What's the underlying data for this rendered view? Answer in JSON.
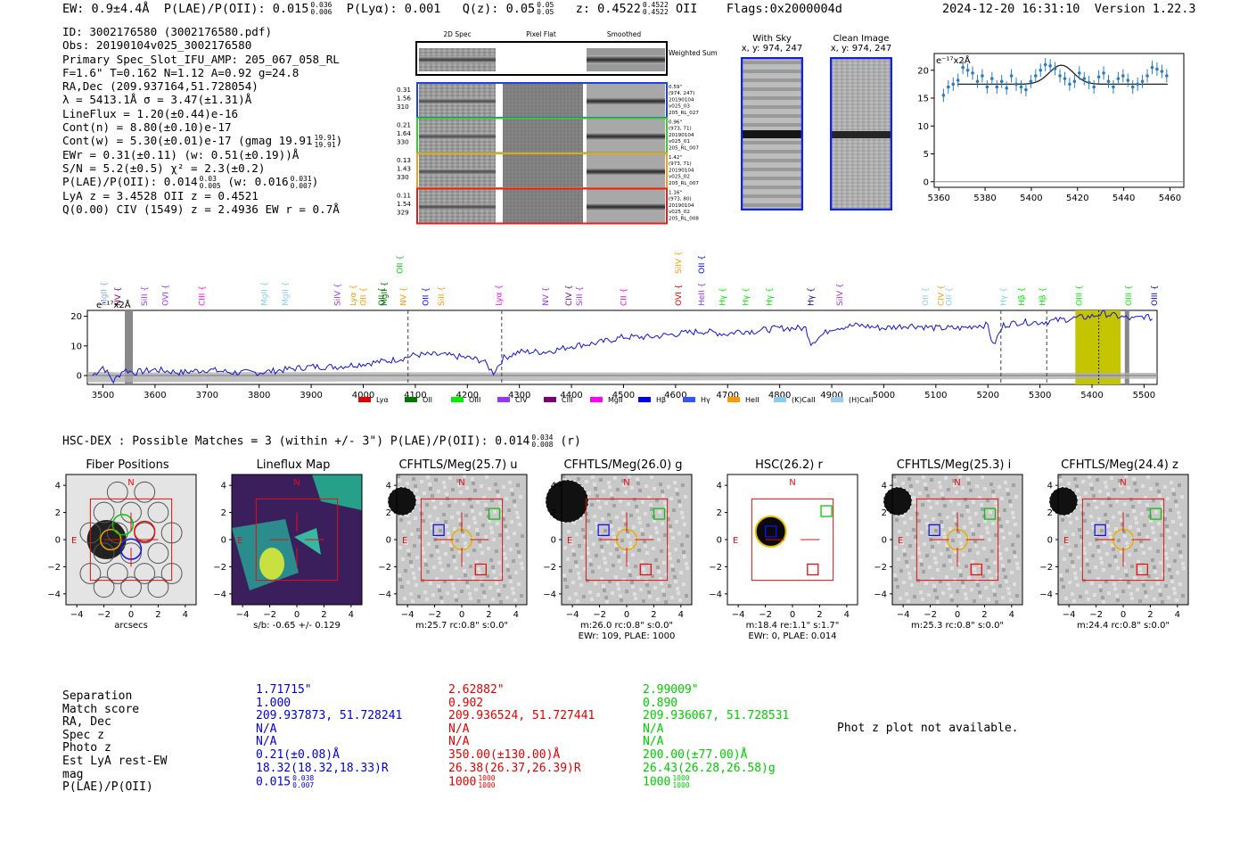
{
  "header": {
    "ew": "EW: 0.9±4.4Å",
    "plae_label": "P(LAE)/P(OII): 0.015",
    "plae_hi": "0.036",
    "plae_lo": "0.006",
    "plya": "P(Lyα): 0.001",
    "qz_label": "Q(z): 0.05",
    "qz_hi": "0.05",
    "qz_lo": "0.05",
    "z_label": "z: 0.4522",
    "z_hi": "0.4522",
    "z_lo": "0.4522",
    "z_line": "OII",
    "flags": "Flags:0x2000004d",
    "timestamp": "2024-12-20 16:31:10",
    "version": "Version 1.22.3"
  },
  "info": {
    "id": "ID: 3002176580 (3002176580.pdf)",
    "obs": "Obs: 20190104v025_3002176580",
    "primary": "Primary Spec_Slot_IFU_AMP: 205_067_058_RL",
    "fwhm": "F=1.6\"  T=0.162  N=1.12  A=0.92  g=24.8",
    "radec": "RA,Dec (209.937164,51.728054)",
    "lambda": "λ = 5413.1Å   σ = 3.47(±1.31)Å",
    "lineflux": "LineFlux = 1.20(±0.44)e-16",
    "contn": "Cont(n) = 8.80(±0.10)e-17",
    "contw": "Cont(w) = 5.30(±0.01)e-17 (gmag 19.91",
    "contw_hi": "19.91",
    "contw_lo": "19.91",
    "ewr": "EWr = 0.31(±0.11) (w: 0.51(±0.19))Å",
    "sn": "S/N = 5.2(±0.5)  χ² = 2.3(±0.2)",
    "plae": "P(LAE)/P(OII): 0.014",
    "plae_hi": "0.03",
    "plae_lo": "0.005",
    "plae_w": "(w: 0.016",
    "plae_w_hi": "0.031",
    "plae_w_lo": "0.007",
    "lya": "LyA z = 3.4528   OII z = 0.4521",
    "civ": "Q(0.00) CIV (1549) z = 2.4936   EW r = 0.7Å"
  },
  "cutouts": {
    "col_2d": "2D Spec",
    "col_flat": "Pixel Flat",
    "col_smooth": "Smoothed",
    "weighted": "Weighted Sum",
    "rows": [
      {
        "left": [
          "0.31",
          "1.56",
          "310"
        ],
        "right": [
          "0.59\"",
          "(974, 247)",
          "20190104",
          "v025_03",
          "205_RL_027"
        ],
        "color": "#2040e0"
      },
      {
        "left": [
          "0.21",
          "1.64",
          "330"
        ],
        "right": [
          "0.96\"",
          "(973, 71)",
          "20190104",
          "v025_01",
          "205_RL_007"
        ],
        "color": "#30d030"
      },
      {
        "left": [
          "0.13",
          "1.43",
          "330"
        ],
        "right": [
          "1.42\"",
          "(973, 71)",
          "20190104",
          "v025_02",
          "205_RL_007"
        ],
        "color": "#f0a020"
      },
      {
        "left": [
          "0.11",
          "1.54",
          "329"
        ],
        "right": [
          "1.16\"",
          "(973, 80)",
          "20190104",
          "v025_02",
          "205_RL_008"
        ],
        "color": "#e02020"
      }
    ],
    "with_sky": "With Sky",
    "with_sky_xy": "x, y: 974, 247",
    "clean": "Clean Image",
    "clean_xy": "x, y: 974, 247"
  },
  "zoom_chart": {
    "type": "line",
    "unit_label": "e⁻¹⁷x2Å",
    "xlim": [
      5358,
      5466
    ],
    "ylim": [
      -1,
      23
    ],
    "xticks": [
      "5360",
      "5380",
      "5400",
      "5420",
      "5440",
      "5460"
    ],
    "yticks": [
      "0",
      "5",
      "10",
      "15",
      "20"
    ]
  },
  "chart_data": {
    "type": "line",
    "title": "",
    "ylabel": "e⁻¹⁷x2Å",
    "xlim": [
      3470,
      5525
    ],
    "ylim": [
      -3,
      22
    ],
    "xticks": [
      "3500",
      "3600",
      "3700",
      "3800",
      "3900",
      "4000",
      "4100",
      "4200",
      "4300",
      "4400",
      "4500",
      "4600",
      "4700",
      "4800",
      "4900",
      "5000",
      "5100",
      "5200",
      "5300",
      "5400",
      "5500"
    ],
    "yticks": [
      "0",
      "10",
      "20"
    ],
    "x": [
      3480,
      3500,
      3520,
      3540,
      3560,
      3600,
      3650,
      3700,
      3750,
      3800,
      3850,
      3900,
      3950,
      4000,
      4050,
      4080,
      4100,
      4150,
      4200,
      4230,
      4250,
      4270,
      4300,
      4350,
      4380,
      4400,
      4450,
      4500,
      4550,
      4600,
      4650,
      4700,
      4720,
      4750,
      4800,
      4850,
      4860,
      4900,
      4950,
      5000,
      5050,
      5100,
      5150,
      5180,
      5200,
      5210,
      5230,
      5260,
      5300,
      5350,
      5400,
      5420,
      5450,
      5480,
      5500,
      5520
    ],
    "y": [
      0,
      3,
      -2,
      2,
      1,
      2,
      1,
      2,
      1,
      1,
      2,
      3,
      3,
      4,
      5,
      6,
      7,
      7,
      6,
      5,
      1,
      6,
      8,
      8,
      9,
      10,
      11,
      13,
      13,
      14,
      15,
      14,
      15,
      15,
      16,
      16,
      11,
      16,
      17,
      16,
      17,
      16,
      16,
      17,
      17,
      10,
      17,
      18,
      18,
      19,
      20,
      21,
      20,
      19,
      20,
      19
    ],
    "marked_lines": [
      4086,
      4266,
      5225,
      5313
    ],
    "highlight": [
      5368,
      5455
    ],
    "legend": [
      "Lyα",
      "OII",
      "OIII",
      "CIV",
      "CIII",
      "MgII",
      "Hβ",
      "Hγ",
      "HeII",
      "(K)CaII",
      "(H)CaII"
    ],
    "legend_colors": [
      "#e00000",
      "#007700",
      "#00ee00",
      "#9933ff",
      "#7a007a",
      "#ff00ff",
      "#0000ff",
      "#3355ff",
      "#ff9900",
      "#88ccee",
      "#99ccee"
    ],
    "line_labels": [
      {
        "t": "MgII",
        "w": 3502,
        "c": "#88aadd"
      },
      {
        "t": "NV",
        "w": 3528,
        "c": "#7a007a"
      },
      {
        "t": "SiII",
        "w": 3580,
        "c": "#9933ff"
      },
      {
        "t": "OVI",
        "w": 3620,
        "c": "#9933ff"
      },
      {
        "t": "CIII",
        "w": 3690,
        "c": "#ff00ff"
      },
      {
        "t": "MgII",
        "w": 3810,
        "c": "#88ccee"
      },
      {
        "t": "MgII",
        "w": 3850,
        "c": "#88ccee"
      },
      {
        "t": "SiIV",
        "w": 3950,
        "c": "#9933ff"
      },
      {
        "t": "Lyα",
        "w": 3980,
        "c": "#ff9900"
      },
      {
        "t": "OII",
        "w": 4000,
        "c": "#ff9900"
      },
      {
        "t": "OII",
        "w": 4035,
        "c": "#007700"
      },
      {
        "t": "MgII",
        "w": 4040,
        "c": "#007700"
      },
      {
        "t": "NV",
        "w": 4077,
        "c": "#ff9900"
      },
      {
        "t": "OII",
        "w": 4120,
        "c": "#0000ff"
      },
      {
        "t": "SiII",
        "w": 4150,
        "c": "#ff9900"
      },
      {
        "t": "Lyα",
        "w": 4260,
        "c": "#ff00ff"
      },
      {
        "t": "NV",
        "w": 4350,
        "c": "#9933ff"
      },
      {
        "t": "CIV",
        "w": 4395,
        "c": "#7a007a"
      },
      {
        "t": "SiII",
        "w": 4415,
        "c": "#9933ff"
      },
      {
        "t": "CII",
        "w": 4500,
        "c": "#ff00ff"
      },
      {
        "t": "OVI",
        "w": 4605,
        "c": "#e00000"
      },
      {
        "t": "HeII",
        "w": 4650,
        "c": "#9933ff"
      },
      {
        "t": "Hγ",
        "w": 4690,
        "c": "#00ee00"
      },
      {
        "t": "Hγ",
        "w": 4735,
        "c": "#00ee00"
      },
      {
        "t": "Hγ",
        "w": 4780,
        "c": "#00ee00"
      },
      {
        "t": "Hγ",
        "w": 4860,
        "c": "#0000aa"
      },
      {
        "t": "SiIV",
        "w": 4915,
        "c": "#9933ff"
      },
      {
        "t": "OII",
        "w": 5080,
        "c": "#88ccee"
      },
      {
        "t": "CIV",
        "w": 5110,
        "c": "#ff9900"
      },
      {
        "t": "OII",
        "w": 5125,
        "c": "#88ccee"
      },
      {
        "t": "Hγ",
        "w": 5230,
        "c": "#88ccee"
      },
      {
        "t": "Hβ",
        "w": 5265,
        "c": "#00ee00"
      },
      {
        "t": "Hβ",
        "w": 5305,
        "c": "#00ee00"
      },
      {
        "t": "OIII",
        "w": 5375,
        "c": "#00ee00"
      },
      {
        "t": "OIII",
        "w": 5470,
        "c": "#00ee00"
      },
      {
        "t": "OIII",
        "w": 5520,
        "c": "#0000aa"
      }
    ],
    "upper_labels": [
      {
        "t": "OII",
        "w": 4070,
        "c": "#00cc00"
      },
      {
        "t": "SiIV",
        "w": 4605,
        "c": "#ff9900"
      },
      {
        "t": "OII",
        "w": 4650,
        "c": "#0000ff"
      }
    ]
  },
  "hscdex": {
    "title": "HSC-DEX : Possible Matches = 3 (within +/- 3\")  P(LAE)/P(OII): 0.014",
    "hi": "0.034",
    "lo": "0.008",
    "band": "(r)"
  },
  "panels": [
    {
      "title": "Fiber Positions",
      "caption": "arcsecs",
      "caption2": ""
    },
    {
      "title": "Lineflux Map",
      "caption": "s/b: -0.65 +/- 0.129",
      "caption2": ""
    },
    {
      "title": "CFHTLS/Meg(25.7) u",
      "caption": "m:25.7 rc:0.8\"  s:0.0\"",
      "caption2": ""
    },
    {
      "title": "CFHTLS/Meg(26.0) g",
      "caption": "m:26.0 rc:0.8\"  s:0.0\"",
      "caption2": "EWr: 109, PLAE: 1000"
    },
    {
      "title": "HSC(26.2) r",
      "caption": "m:18.4  re:1.1\"  s:1.7\"",
      "caption2": "EWr: 0, PLAE: 0.014"
    },
    {
      "title": "CFHTLS/Meg(25.3) i",
      "caption": "m:25.3 rc:0.8\"  s:0.0\"",
      "caption2": ""
    },
    {
      "title": "CFHTLS/Meg(24.4) z",
      "caption": "m:24.4 rc:0.8\"  s:0.0\"",
      "caption2": ""
    }
  ],
  "panel_axis": {
    "yticks": [
      "4",
      "2",
      "0",
      "−2",
      "−4"
    ],
    "xticks": [
      "−4",
      "−2",
      "0",
      "2",
      "4"
    ],
    "north": "N",
    "east": "E"
  },
  "matches": {
    "labels": [
      "Separation",
      "Match score",
      "RA, Dec",
      "Spec z",
      "Photo z",
      "Est LyA rest-EW",
      "mag",
      "P(LAE)/P(OII)"
    ],
    "cols": [
      {
        "sep": "1.71715\"",
        "score": "1.000",
        "radec": "209.937873, 51.728241",
        "specz": "N/A",
        "photoz": "N/A",
        "ew": "0.21(±0.08)Å",
        "mag": "18.32(18.32,18.33)R",
        "plae": "0.015",
        "plae_hi": "0.038",
        "plae_lo": "0.007"
      },
      {
        "sep": "2.62882\"",
        "score": "0.902",
        "radec": "209.936524, 51.727441",
        "specz": "N/A",
        "photoz": "N/A",
        "ew": "350.00(±130.00)Å",
        "mag": "26.38(26.37,26.39)R",
        "plae": "1000",
        "plae_hi": "1000",
        "plae_lo": "1000"
      },
      {
        "sep": "2.99009\"",
        "score": "0.890",
        "radec": "209.936067, 51.728531",
        "specz": "N/A",
        "photoz": "N/A",
        "ew": "200.00(±77.00)Å",
        "mag": "26.43(26.28,26.58)g",
        "plae": "1000",
        "plae_hi": "1000",
        "plae_lo": "1000"
      }
    ],
    "photz_note": "Phot z plot not available."
  }
}
